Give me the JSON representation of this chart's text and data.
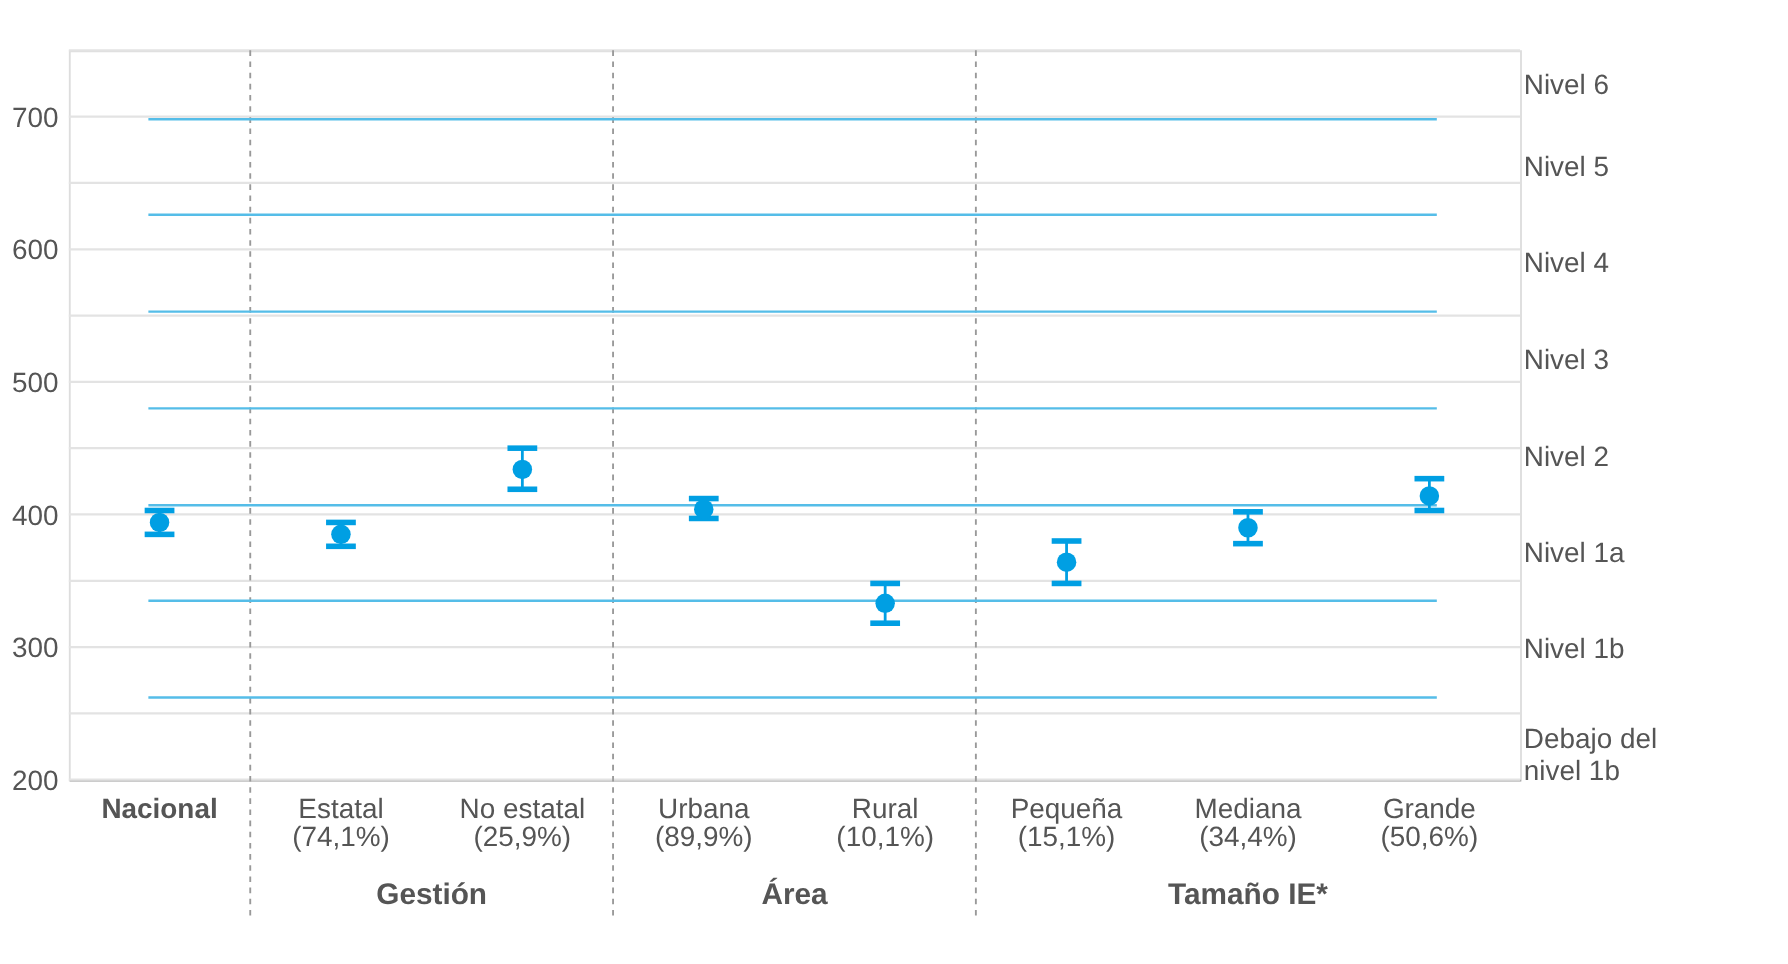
{
  "chart_data": {
    "type": "scatter",
    "categories": [
      "Nacional",
      "Estatal\n(74,1%)",
      "No estatal\n(25,9%)",
      "Urbana\n(89,9%)",
      "Rural\n(10,1%)",
      "Pequeña\n(15,1%)",
      "Mediana\n(34,4%)",
      "Grande\n(50,6%)"
    ],
    "series": [
      {
        "color": "#009fe3",
        "values": [
          394,
          385,
          434,
          404,
          333,
          364,
          390,
          414
        ],
        "errors": [
          [
            385,
            403
          ],
          [
            376,
            394
          ],
          [
            419,
            450
          ],
          [
            397,
            412
          ],
          [
            318,
            348
          ],
          [
            348,
            380
          ],
          [
            378,
            402
          ],
          [
            403,
            427
          ]
        ]
      }
    ],
    "ylim": [
      200,
      750
    ],
    "yticks": [
      200,
      {
        "value": 250,
        "label": null
      },
      300,
      {
        "value": 350,
        "label": null
      },
      400,
      {
        "value": 450,
        "label": null
      },
      500,
      {
        "value": 550,
        "label": null
      },
      600,
      {
        "value": 650,
        "label": null
      },
      700,
      {
        "value": 750,
        "label": null
      }
    ],
    "grid": "y",
    "marker": "circle",
    "ref_lines": [
      {
        "axis": "y",
        "value": 698,
        "label": null,
        "color": "#55bde8"
      },
      {
        "axis": "y",
        "value": 626,
        "label": null,
        "color": "#55bde8"
      },
      {
        "axis": "y",
        "value": 553,
        "label": null,
        "color": "#55bde8"
      },
      {
        "axis": "y",
        "value": 480,
        "label": null,
        "color": "#55bde8"
      },
      {
        "axis": "y",
        "value": 407,
        "label": null,
        "color": "#55bde8"
      },
      {
        "axis": "y",
        "value": 335,
        "label": null,
        "color": "#55bde8"
      },
      {
        "axis": "y",
        "value": 262,
        "label": null,
        "color": "#55bde8"
      }
    ],
    "annotations": [
      "Gestión",
      "Área",
      "Tamaño IE*",
      "Nivel 6",
      "Nivel 5",
      "Nivel 4",
      "Nivel 3",
      "Nivel 2",
      "Nivel 1a",
      "Nivel 1b",
      "Debajo del\nnivel 1b"
    ]
  }
}
